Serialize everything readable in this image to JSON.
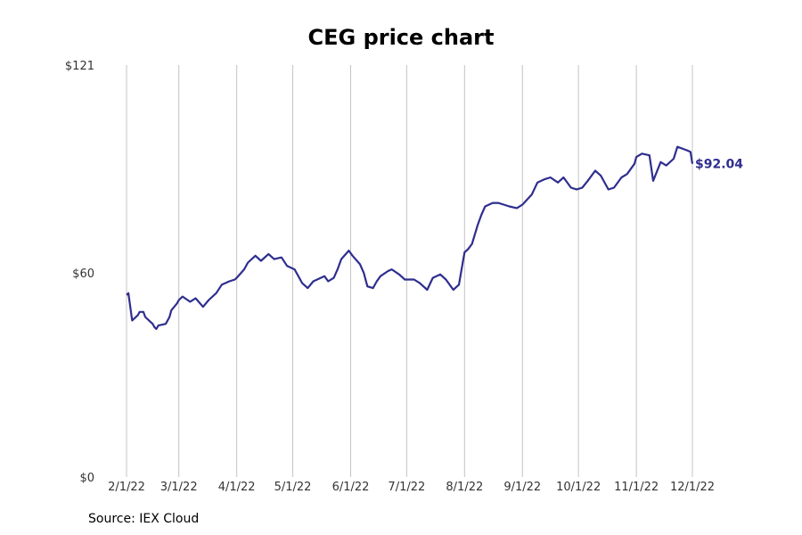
{
  "source": "Source: IEX Cloud",
  "chart_data": {
    "type": "line",
    "title": "CEG price chart",
    "xlabel": "",
    "ylabel": "",
    "x_ticks": [
      "2022-02-01",
      "2022-03-01",
      "2022-04-01",
      "2022-05-01",
      "2022-06-01",
      "2022-07-01",
      "2022-08-01",
      "2022-09-01",
      "2022-10-01",
      "2022-11-01",
      "2022-12-01"
    ],
    "x_tick_labels": [
      "2/1/22",
      "3/1/22",
      "4/1/22",
      "5/1/22",
      "6/1/22",
      "7/1/22",
      "8/1/22",
      "9/1/22",
      "10/1/22",
      "11/1/22",
      "12/1/22"
    ],
    "y_ticks": [
      0,
      60,
      121
    ],
    "y_tick_labels": [
      "$0",
      "$60",
      "$121"
    ],
    "ylim": [
      0,
      121
    ],
    "xlim": [
      "2022-02-01",
      "2022-12-01"
    ],
    "grid": "vertical",
    "end_label": "$92.04",
    "line_color": "#2e2e8f",
    "series": [
      {
        "x": [
          "2022-02-01",
          "2022-02-02",
          "2022-02-03",
          "2022-02-04",
          "2022-02-07",
          "2022-02-08",
          "2022-02-09",
          "2022-02-10",
          "2022-02-11",
          "2022-02-14",
          "2022-02-15",
          "2022-02-16",
          "2022-02-17",
          "2022-02-18",
          "2022-02-22",
          "2022-02-23",
          "2022-02-24",
          "2022-02-25",
          "2022-02-28",
          "2022-03-01",
          "2022-03-03",
          "2022-03-07",
          "2022-03-10",
          "2022-03-14",
          "2022-03-17",
          "2022-03-21",
          "2022-03-24",
          "2022-03-28",
          "2022-03-31",
          "2022-04-01",
          "2022-04-05",
          "2022-04-07",
          "2022-04-11",
          "2022-04-14",
          "2022-04-18",
          "2022-04-21",
          "2022-04-25",
          "2022-04-28",
          "2022-05-02",
          "2022-05-04",
          "2022-05-06",
          "2022-05-09",
          "2022-05-12",
          "2022-05-16",
          "2022-05-18",
          "2022-05-20",
          "2022-05-23",
          "2022-05-25",
          "2022-05-27",
          "2022-05-31",
          "2022-06-02",
          "2022-06-06",
          "2022-06-08",
          "2022-06-10",
          "2022-06-13",
          "2022-06-15",
          "2022-06-17",
          "2022-06-21",
          "2022-06-23",
          "2022-06-27",
          "2022-06-30",
          "2022-07-05",
          "2022-07-08",
          "2022-07-12",
          "2022-07-15",
          "2022-07-19",
          "2022-07-22",
          "2022-07-26",
          "2022-07-28",
          "2022-07-29",
          "2022-08-01",
          "2022-08-03",
          "2022-08-05",
          "2022-08-08",
          "2022-08-10",
          "2022-08-12",
          "2022-08-16",
          "2022-08-19",
          "2022-08-22",
          "2022-08-25",
          "2022-08-29",
          "2022-09-01",
          "2022-09-06",
          "2022-09-09",
          "2022-09-13",
          "2022-09-16",
          "2022-09-20",
          "2022-09-23",
          "2022-09-27",
          "2022-09-30",
          "2022-10-03",
          "2022-10-06",
          "2022-10-10",
          "2022-10-13",
          "2022-10-17",
          "2022-10-20",
          "2022-10-24",
          "2022-10-27",
          "2022-10-31",
          "2022-11-01",
          "2022-11-04",
          "2022-11-08",
          "2022-11-10",
          "2022-11-14",
          "2022-11-17",
          "2022-11-21",
          "2022-11-23",
          "2022-11-28",
          "2022-11-30",
          "2022-12-01"
        ],
        "values": [
          53.5,
          54.0,
          50.0,
          46.0,
          47.5,
          48.5,
          48.5,
          48.5,
          47.0,
          45.5,
          45.0,
          44.0,
          43.5,
          44.5,
          45.0,
          46.0,
          47.0,
          49.0,
          51.0,
          52.0,
          53.0,
          51.5,
          52.5,
          50.0,
          52.0,
          54.0,
          56.5,
          57.5,
          58.0,
          58.5,
          61.0,
          63.0,
          65.0,
          63.5,
          65.5,
          64.0,
          64.5,
          62.0,
          61.0,
          59.0,
          57.0,
          55.5,
          57.5,
          58.5,
          59.0,
          57.5,
          58.5,
          61.0,
          64.0,
          66.5,
          65.0,
          62.5,
          60.0,
          56.0,
          55.5,
          57.5,
          59.0,
          60.5,
          61.0,
          59.5,
          58.0,
          58.0,
          57.0,
          55.0,
          58.5,
          59.5,
          58.0,
          55.0,
          56.0,
          56.5,
          66.0,
          67.0,
          68.5,
          74.0,
          77.0,
          79.5,
          80.5,
          80.5,
          80.0,
          79.5,
          79.0,
          80.0,
          83.0,
          86.5,
          87.5,
          88.0,
          86.5,
          88.0,
          85.0,
          84.5,
          85.0,
          87.0,
          90.0,
          88.5,
          84.5,
          85.0,
          88.0,
          89.0,
          92.0,
          94.0,
          95.0,
          94.5,
          87.0,
          92.5,
          91.5,
          93.5,
          97.0,
          96.0,
          95.5,
          92.0
        ]
      }
    ]
  }
}
